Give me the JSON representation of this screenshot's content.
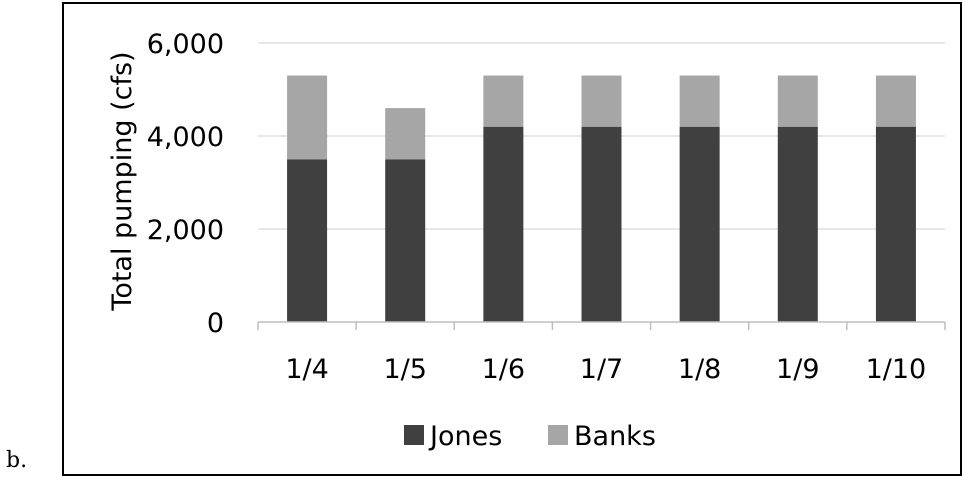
{
  "panel_label": "b.",
  "chart_data": {
    "type": "bar",
    "stacked": true,
    "categories": [
      "1/4",
      "1/5",
      "1/6",
      "1/7",
      "1/8",
      "1/9",
      "1/10"
    ],
    "series": [
      {
        "name": "Jones",
        "values": [
          3500,
          3500,
          4200,
          4200,
          4200,
          4200,
          4200
        ],
        "color": "#404040"
      },
      {
        "name": "Banks",
        "values": [
          1800,
          1100,
          1100,
          1100,
          1100,
          1100,
          1100
        ],
        "color": "#a6a6a6"
      }
    ],
    "ylabel": "Total pumping (cfs)",
    "yticks": [
      "0",
      "2,000",
      "4,000",
      "6,000"
    ],
    "ylim": [
      0,
      6000
    ],
    "grid": "horizontal",
    "legend": "bottom"
  }
}
